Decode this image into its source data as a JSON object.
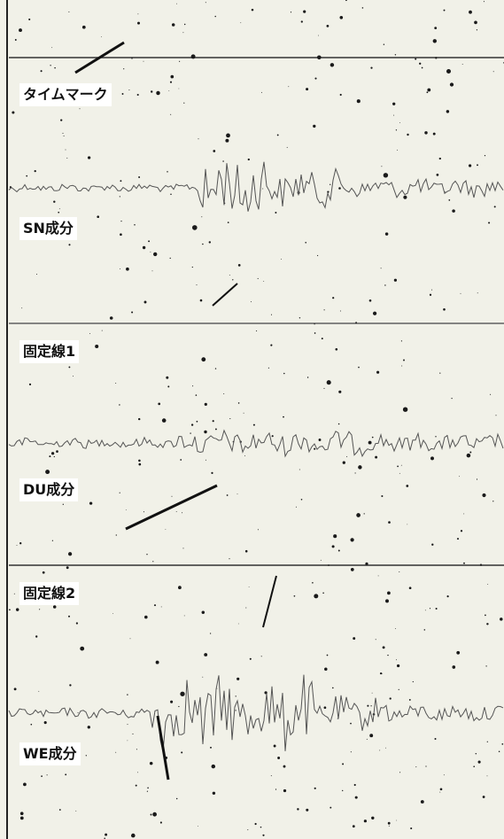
{
  "labels": [
    "タイムマーク",
    "SN成分",
    "固定線1",
    "DU成分",
    "固定線2",
    "WE成分"
  ]
}
